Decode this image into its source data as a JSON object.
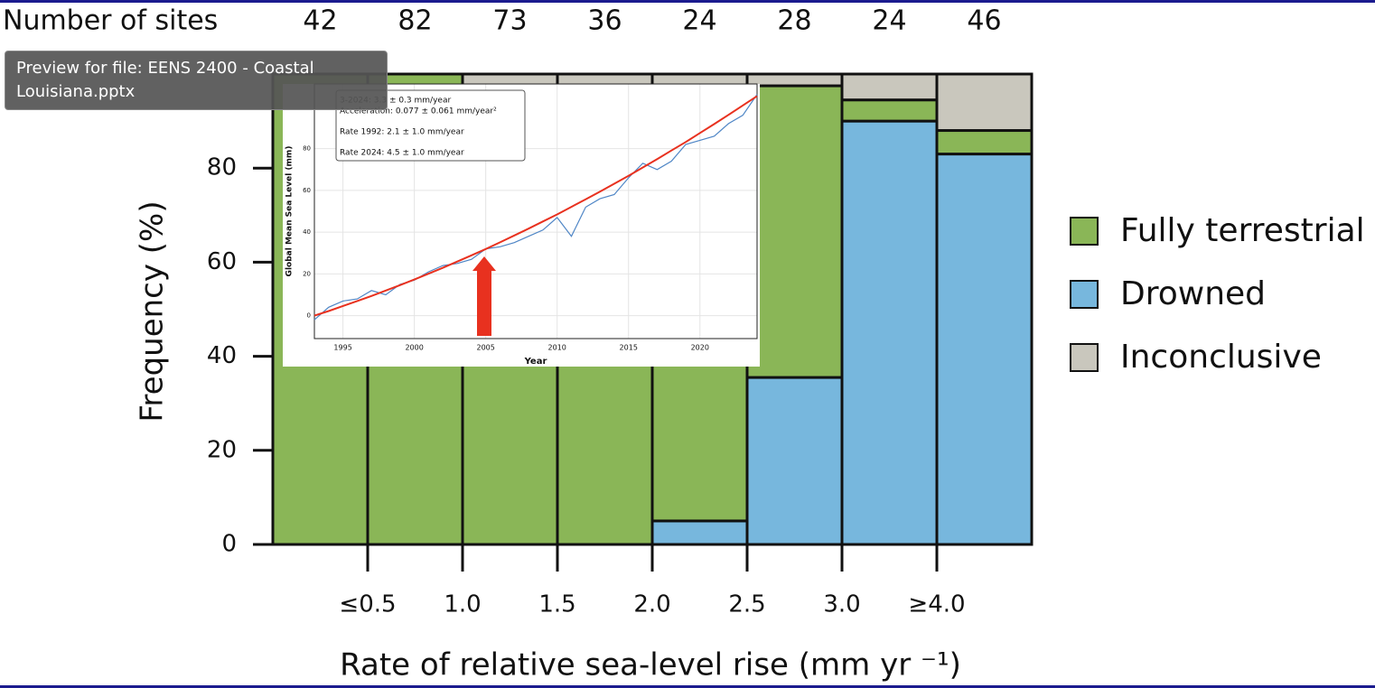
{
  "tooltip": {
    "text": "Preview for file: EENS 2400 - Coastal Louisiana.pptx"
  },
  "chart_data": [
    {
      "type": "bar",
      "stacked": true,
      "site_counts": {
        "label": "Number of sites",
        "values": [
          42,
          82,
          73,
          36,
          24,
          28,
          24,
          46
        ]
      },
      "boundary_labels": [
        "≤0.5",
        "1.0",
        "1.5",
        "2.0",
        "2.5",
        "3.0",
        "≥4.0"
      ],
      "x_label": "Rate of relative sea-level rise (mm yr ⁻¹)",
      "y_label": "Frequency (%)",
      "ylim": [
        0,
        100
      ],
      "yticks": [
        0,
        20,
        40,
        60,
        80
      ],
      "legend": "right",
      "series": [
        {
          "name": "Fully terrestrial",
          "color": "#8ab657",
          "values": [
            100,
            100,
            96,
            95,
            90,
            62,
            4.5,
            5
          ]
        },
        {
          "name": "Drowned",
          "color": "#77b7dd",
          "values": [
            0,
            0,
            0,
            0,
            5,
            35.5,
            90,
            83
          ]
        },
        {
          "name": "Inconclusive",
          "color": "#c9c7bd",
          "values": [
            0,
            0,
            4,
            5,
            5,
            2.5,
            5.5,
            12
          ]
        }
      ]
    },
    {
      "type": "line",
      "x_label": "Year",
      "y_label": "Global Mean Sea Level (mm)",
      "annotations": [
        "3-2024: 3.3 ± 0.3 mm/year",
        "Acceleration: 0.077 ± 0.061 mm/year²",
        "Rate 1992: 2.1 ± 1.0 mm/year",
        "Rate 2024: 4.5 ± 1.0 mm/year"
      ],
      "xlim": [
        1993,
        2024
      ],
      "ylim": [
        -11,
        111
      ],
      "xticks": [
        1995,
        2000,
        2005,
        2010,
        2015,
        2020
      ],
      "yticks": [
        0,
        20,
        40,
        60,
        80
      ],
      "grid": true,
      "x": [
        1993,
        1994,
        1995,
        1996,
        1997,
        1998,
        1999,
        2000,
        2001,
        2002,
        2003,
        2004,
        2005,
        2006,
        2007,
        2008,
        2009,
        2010,
        2011,
        2012,
        2013,
        2014,
        2015,
        2016,
        2017,
        2018,
        2019,
        2020,
        2021,
        2022,
        2023,
        2024
      ],
      "series": [
        {
          "color": "#4f86c6",
          "values": [
            -2,
            4,
            7,
            8,
            12,
            10,
            15,
            17,
            21,
            24,
            25,
            27,
            32,
            33,
            35,
            38,
            41,
            47,
            38,
            52,
            56,
            58,
            66,
            73,
            70,
            74,
            82,
            84,
            86,
            92,
            96,
            106
          ]
        },
        {
          "color": "#e8311f",
          "values": [
            0,
            2.2,
            4.6,
            7,
            9.4,
            12,
            14.6,
            17.3,
            20.1,
            22.9,
            25.9,
            28.9,
            31.9,
            35.1,
            38.4,
            41.7,
            45.1,
            48.5,
            52.1,
            55.7,
            59.4,
            63.2,
            67,
            71,
            75,
            79.1,
            83.2,
            87.5,
            91.8,
            96.2,
            100.7,
            105.2
          ]
        }
      ]
    }
  ]
}
